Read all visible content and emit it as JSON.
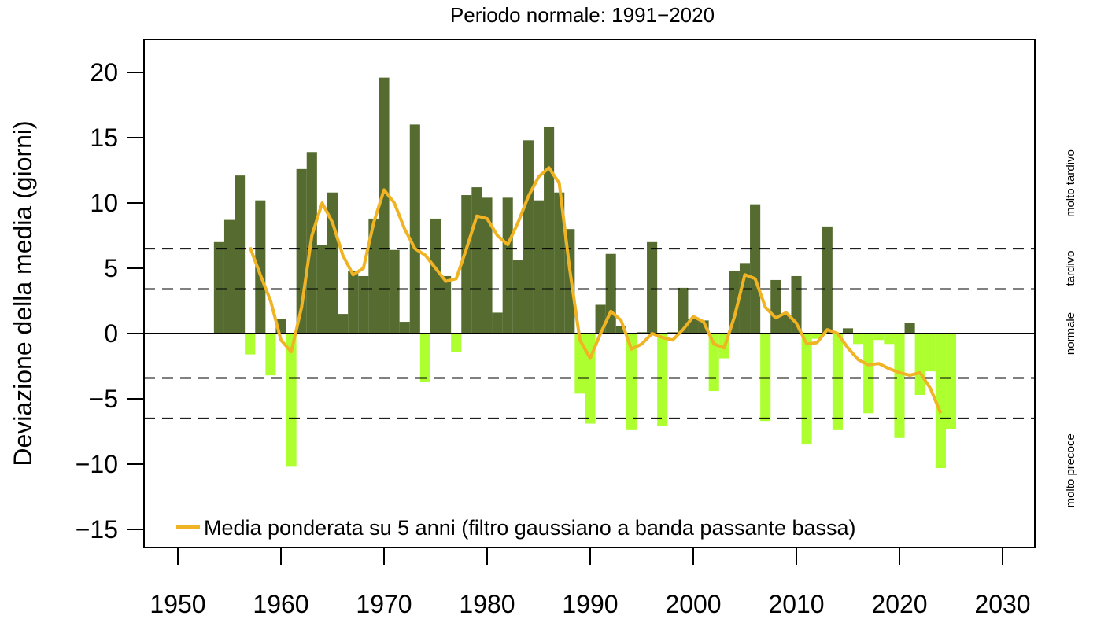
{
  "chart_data": {
    "type": "bar",
    "title": "Periodo normale: 1991−2020",
    "ylabel": "Deviazione della media (giorni)",
    "xlabel": "",
    "xlim": [
      1946.8,
      2033.2
    ],
    "ylim": [
      -16.3,
      22.5
    ],
    "xticks": [
      1950,
      1960,
      1970,
      1980,
      1990,
      2000,
      2010,
      2020,
      2030
    ],
    "yticks": [
      -15,
      -10,
      -5,
      0,
      5,
      10,
      15,
      20
    ],
    "colors": {
      "positive": "#556B2F",
      "negative": "#ADFF2F",
      "smooth": "#F0B323"
    },
    "years": [
      1954,
      1955,
      1956,
      1957,
      1958,
      1959,
      1960,
      1961,
      1962,
      1963,
      1964,
      1965,
      1966,
      1967,
      1968,
      1969,
      1970,
      1971,
      1972,
      1973,
      1974,
      1975,
      1976,
      1977,
      1978,
      1979,
      1980,
      1981,
      1982,
      1983,
      1984,
      1985,
      1986,
      1987,
      1988,
      1989,
      1990,
      1991,
      1992,
      1993,
      1994,
      1995,
      1996,
      1997,
      1998,
      1999,
      2000,
      2001,
      2002,
      2003,
      2004,
      2005,
      2006,
      2007,
      2008,
      2009,
      2010,
      2011,
      2012,
      2013,
      2014,
      2015,
      2016,
      2017,
      2018,
      2019,
      2020,
      2021,
      2022,
      2023,
      2024,
      2025
    ],
    "values": [
      7.0,
      8.7,
      12.1,
      -1.6,
      10.2,
      -3.2,
      1.1,
      -10.2,
      12.6,
      13.9,
      6.8,
      10.8,
      1.5,
      4.8,
      4.4,
      8.8,
      19.6,
      6.4,
      0.9,
      16.0,
      -3.7,
      8.8,
      4.4,
      -1.4,
      10.6,
      11.2,
      10.4,
      1.6,
      10.4,
      5.6,
      14.8,
      10.2,
      15.8,
      10.8,
      8.0,
      -4.6,
      -6.9,
      2.2,
      6.1,
      0.6,
      -7.4,
      0.1,
      7.0,
      -7.1,
      0.1,
      3.5,
      1.1,
      1.0,
      -4.4,
      -1.9,
      4.8,
      5.4,
      9.9,
      -6.7,
      4.1,
      1.4,
      4.4,
      -8.5,
      -0.4,
      8.2,
      -7.4,
      0.4,
      -0.8,
      -6.1,
      -0.5,
      -0.8,
      -8.0,
      0.8,
      -4.7,
      -2.9,
      -10.3,
      -7.3
    ],
    "smooth": {
      "name": "Media ponderata su 5 anni (filtro gaussiano a banda passante bassa)",
      "years": [
        1957,
        1958,
        1959,
        1960,
        1961,
        1962,
        1963,
        1964,
        1965,
        1966,
        1967,
        1968,
        1969,
        1970,
        1971,
        1972,
        1973,
        1974,
        1975,
        1976,
        1977,
        1978,
        1979,
        1980,
        1981,
        1982,
        1983,
        1984,
        1985,
        1986,
        1987,
        1988,
        1989,
        1990,
        1991,
        1992,
        1993,
        1994,
        1995,
        1996,
        1997,
        1998,
        1999,
        2000,
        2001,
        2002,
        2003,
        2004,
        2005,
        2006,
        2007,
        2008,
        2009,
        2010,
        2011,
        2012,
        2013,
        2014,
        2015,
        2016,
        2017,
        2018,
        2019,
        2020,
        2021,
        2022,
        2023,
        2024
      ],
      "values": [
        6.6,
        4.5,
        2.5,
        -0.5,
        -1.4,
        2.0,
        7.5,
        10.0,
        8.5,
        6.0,
        4.5,
        5.0,
        8.5,
        11.0,
        10.0,
        8.0,
        6.5,
        6.0,
        5.0,
        4.0,
        4.2,
        6.5,
        9.0,
        8.8,
        7.5,
        6.8,
        8.5,
        10.5,
        12.0,
        12.7,
        11.5,
        5.0,
        -0.5,
        -1.9,
        0.0,
        1.7,
        1.0,
        -1.2,
        -0.8,
        0.0,
        -0.3,
        -0.5,
        0.3,
        1.3,
        0.9,
        -0.8,
        -1.1,
        1.3,
        4.5,
        4.2,
        2.0,
        1.2,
        1.6,
        0.8,
        -0.8,
        -0.7,
        0.3,
        0.0,
        -1.1,
        -2.0,
        -2.4,
        -2.3,
        -2.7,
        -3.0,
        -3.2,
        -3.0,
        -4.2,
        -6.1
      ]
    },
    "thresholds": [
      6.5,
      3.4,
      -3.4,
      -6.5
    ],
    "legend": {
      "label": "Media ponderata su 5 anni (filtro gaussiano a banda passante bassa)",
      "position": "bottom-left"
    },
    "side_labels": [
      {
        "text": "molto tardivo",
        "center": 11.5
      },
      {
        "text": "tardivo",
        "center": 5.0
      },
      {
        "text": "normale",
        "center": 0
      },
      {
        "text": "molto precoce",
        "center": -10.5
      }
    ],
    "grid": false
  }
}
